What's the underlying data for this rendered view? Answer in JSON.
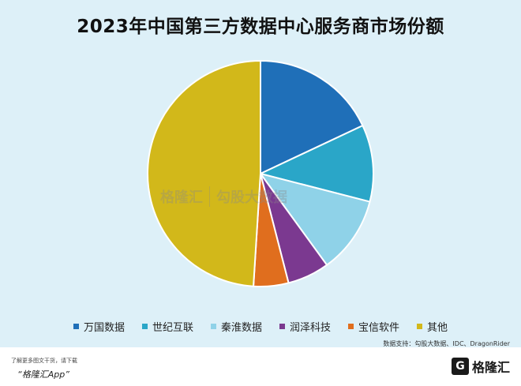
{
  "chart_data": {
    "type": "pie",
    "title": "2023年中国第三方数据中心服务商市场份额",
    "categories": [
      "万国数据",
      "世纪互联",
      "秦淮数据",
      "润泽科技",
      "宝信软件",
      "其他"
    ],
    "values": [
      18,
      11,
      11,
      6,
      5,
      49
    ],
    "colors": [
      "#1f6fb8",
      "#2aa6c8",
      "#8fd2e8",
      "#7b3990",
      "#e06e1e",
      "#d2b81a"
    ],
    "legend_position": "bottom"
  },
  "source_note": "数据支持：勾股大数据、IDC、DragonRider",
  "watermark": {
    "logo_text": "格隆汇",
    "sub_text": "勾股大数据"
  },
  "footer": {
    "promo_text": "了解更多图文干货，请下载",
    "app_text": "“格隆汇App”",
    "logo_mark": "G",
    "logo_text": "格隆汇"
  }
}
